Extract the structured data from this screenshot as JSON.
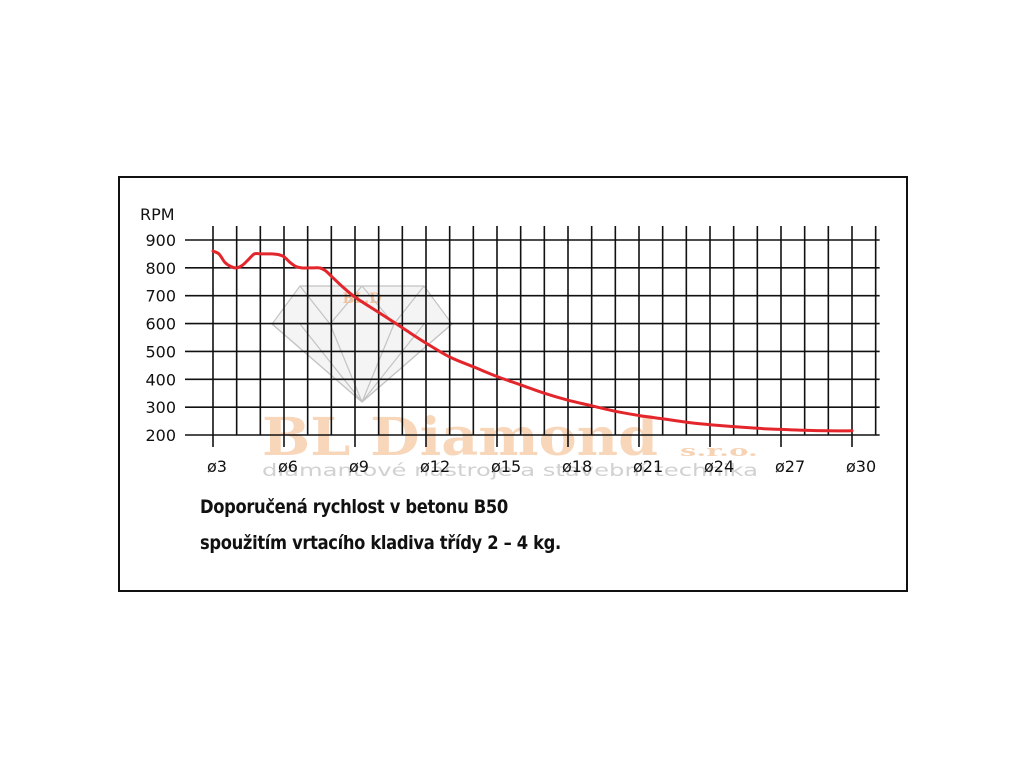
{
  "chart_data": {
    "type": "line",
    "title": "",
    "ylabel": "RPM",
    "xlabel": "",
    "x_tick_labels": [
      "ø3",
      "ø6",
      "ø9",
      "ø12",
      "ø15",
      "ø18",
      "ø21",
      "ø24",
      "ø27",
      "ø30"
    ],
    "x_ticks": [
      3,
      6,
      9,
      12,
      15,
      18,
      21,
      24,
      27,
      30
    ],
    "y_ticks": [
      200,
      300,
      400,
      500,
      600,
      700,
      800,
      900
    ],
    "xlim": [
      3,
      30
    ],
    "ylim": [
      200,
      900
    ],
    "grid": true,
    "series": [
      {
        "color": "#e3262b",
        "x": [
          3.0,
          3.25,
          3.5,
          3.75,
          4.0,
          4.25,
          4.5,
          4.75,
          5.0,
          5.25,
          5.5,
          5.75,
          6.0,
          6.25,
          6.5,
          6.75,
          7.0,
          7.25,
          7.5,
          7.75,
          8.0,
          8.5,
          9.0,
          10.0,
          11.0,
          12.0,
          13.0,
          14.0,
          15.0,
          16.0,
          17.0,
          18.0,
          19.0,
          20.0,
          21.0,
          22.0,
          23.0,
          24.0,
          25.0,
          26.0,
          27.0,
          28.0,
          29.0,
          30.0
        ],
        "values": [
          860,
          850,
          820,
          805,
          800,
          810,
          830,
          850,
          850,
          850,
          850,
          848,
          840,
          820,
          805,
          800,
          800,
          800,
          800,
          790,
          770,
          730,
          695,
          640,
          585,
          530,
          480,
          445,
          410,
          380,
          350,
          325,
          305,
          285,
          270,
          258,
          246,
          237,
          230,
          224,
          220,
          217,
          215,
          215
        ]
      }
    ]
  },
  "caption": {
    "line1": "Doporučená rychlost v betonu B50",
    "line2": "spoužitím vrtacího kladiva třídy 2 – 4 kg."
  },
  "watermark": {
    "brand": "BL Diamond",
    "suffix": "s.r.o.",
    "tagline": "diamantové nástroje a stavební technika",
    "gem_initials": "BL.D"
  },
  "colors": {
    "curve": "#e3262b",
    "grid": "#111111",
    "frame": "#111111",
    "watermark_orange": "#f6c9a4",
    "watermark_gray": "#c9c9c9"
  }
}
